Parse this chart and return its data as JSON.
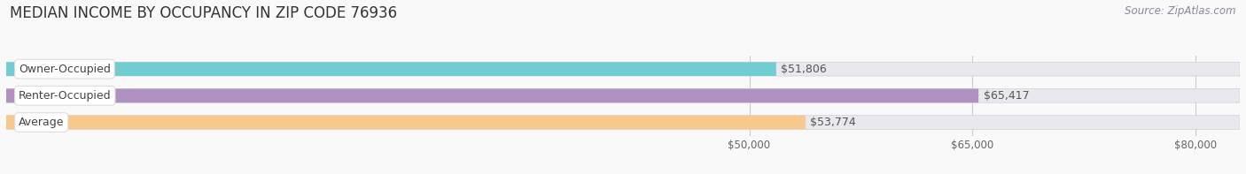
{
  "title": "MEDIAN INCOME BY OCCUPANCY IN ZIP CODE 76936",
  "source": "Source: ZipAtlas.com",
  "categories": [
    "Owner-Occupied",
    "Renter-Occupied",
    "Average"
  ],
  "values": [
    51806,
    65417,
    53774
  ],
  "bar_colors": [
    "#72cdd1",
    "#b090c0",
    "#f8c98c"
  ],
  "bar_bg_color": "#e8e8ee",
  "bar_border_color": "#d0d0d8",
  "value_labels": [
    "$51,806",
    "$65,417",
    "$53,774"
  ],
  "xmin": 0,
  "xmax": 83000,
  "xticks": [
    50000,
    65000,
    80000
  ],
  "xtick_labels": [
    "$50,000",
    "$65,000",
    "$80,000"
  ],
  "title_fontsize": 12,
  "source_fontsize": 8.5,
  "label_fontsize": 9,
  "value_fontsize": 9,
  "bar_height": 0.52,
  "background_color": "#f9f9f9"
}
